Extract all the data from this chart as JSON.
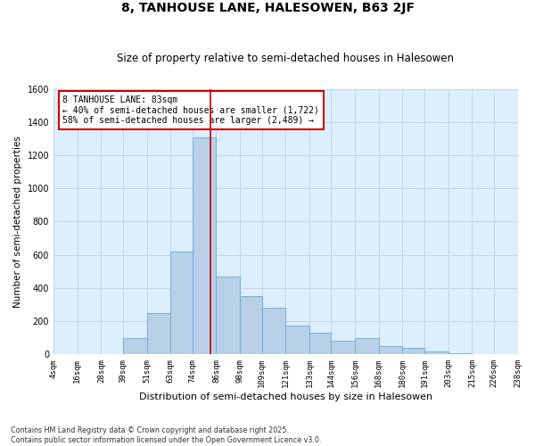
{
  "title": "8, TANHOUSE LANE, HALESOWEN, B63 2JF",
  "subtitle": "Size of property relative to semi-detached houses in Halesowen",
  "xlabel": "Distribution of semi-detached houses by size in Halesowen",
  "ylabel": "Number of semi-detached properties",
  "footer_line1": "Contains HM Land Registry data © Crown copyright and database right 2025.",
  "footer_line2": "Contains public sector information licensed under the Open Government Licence v3.0.",
  "annotation_line1": "8 TANHOUSE LANE: 83sqm",
  "annotation_line2": "← 40% of semi-detached houses are smaller (1,722)",
  "annotation_line3": "58% of semi-detached houses are larger (2,489) →",
  "property_size": 83,
  "bin_edges": [
    4,
    16,
    28,
    39,
    51,
    63,
    74,
    86,
    98,
    109,
    121,
    133,
    144,
    156,
    168,
    180,
    191,
    203,
    215,
    226,
    238
  ],
  "bin_labels": [
    "4sqm",
    "16sqm",
    "28sqm",
    "39sqm",
    "51sqm",
    "63sqm",
    "74sqm",
    "86sqm",
    "98sqm",
    "109sqm",
    "121sqm",
    "133sqm",
    "144sqm",
    "156sqm",
    "168sqm",
    "180sqm",
    "191sqm",
    "203sqm",
    "215sqm",
    "226sqm",
    "238sqm"
  ],
  "bar_heights": [
    3,
    3,
    3,
    100,
    250,
    620,
    1310,
    470,
    350,
    280,
    175,
    130,
    85,
    100,
    50,
    40,
    20,
    5,
    3,
    3
  ],
  "bar_color": "#b8d0e8",
  "bar_edge_color": "#6aaad4",
  "line_color": "#c00000",
  "annotation_box_color": "#cc0000",
  "bg_color": "#ddeeff",
  "grid_color": "#c0d4e8",
  "ylim": [
    0,
    1600
  ],
  "yticks": [
    0,
    200,
    400,
    600,
    800,
    1000,
    1200,
    1400,
    1600
  ],
  "title_fontsize": 10,
  "subtitle_fontsize": 8.5
}
